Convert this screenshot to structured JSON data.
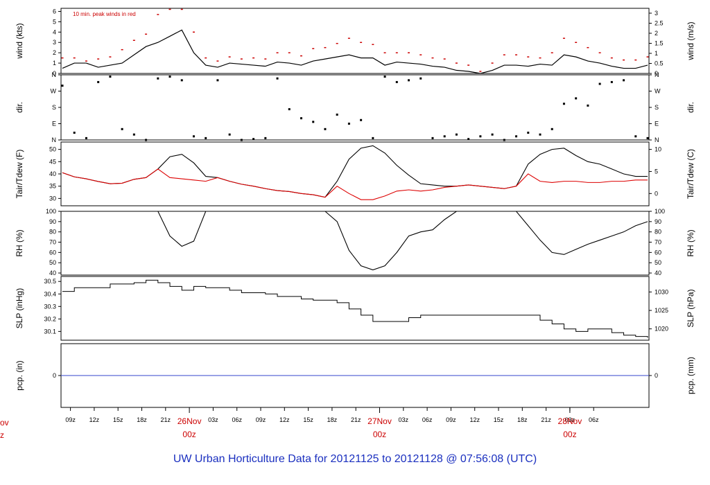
{
  "chart_data": {
    "type": "line",
    "title": "UW Urban Horticulture Data for 20121125  to  20121128 @ 07:56:08  (UTC)",
    "annotation": "10 min. peak winds in red",
    "x_ticks": [
      "09z",
      "12z",
      "15z",
      "18z",
      "21z",
      "03z",
      "06z",
      "09z",
      "12z",
      "15z",
      "18z",
      "21z",
      "03z",
      "06z",
      "09z",
      "12z",
      "15z",
      "18z",
      "21z",
      "03z",
      "06z"
    ],
    "day_markers": [
      {
        "date": "26Nov",
        "time": "00z"
      },
      {
        "date": "27Nov",
        "time": "00z"
      },
      {
        "date": "28Nov",
        "time": "00z"
      }
    ],
    "edge_labels": [
      "ov",
      "z"
    ],
    "colors": {
      "primary": "#000000",
      "peak": "#cc0000",
      "dewpoint": "#dd0000",
      "precip": "#3344cc",
      "title": "#1a2fbf"
    },
    "panels": [
      {
        "id": "wind",
        "ylabel_left": "wind (kts)",
        "ylabel_right": "wind (m/s)",
        "yticks_left": [
          "0",
          "1",
          "2",
          "3",
          "4",
          "5",
          "6"
        ],
        "yticks_right": [
          "0",
          "0.5",
          "1",
          "1.5",
          "2",
          "2.5",
          "3"
        ],
        "ylim": [
          0,
          6.3
        ],
        "series": [
          {
            "values": [
              0.5,
              1.0,
              1.0,
              0.6,
              0.8,
              1.0,
              1.8,
              2.6,
              3.0,
              3.6,
              4.2,
              2.0,
              0.8,
              0.6,
              1.0,
              0.9,
              0.8,
              0.7,
              1.1,
              1.0,
              0.8,
              1.2,
              1.4,
              1.6,
              1.8,
              1.5,
              1.5,
              0.8,
              1.1,
              1.0,
              0.9,
              0.7,
              0.6,
              0.3,
              0.2,
              0.0,
              0.3,
              0.8,
              0.8,
              0.7,
              0.9,
              0.8,
              1.8,
              1.6,
              1.2,
              1.0,
              0.7,
              0.5,
              0.5,
              0.8
            ]
          },
          {
            "values": [
              1.5,
              1.5,
              1.2,
              1.4,
              1.6,
              2.3,
              3.2,
              3.8,
              5.7,
              6.2,
              6.2,
              4.0,
              1.5,
              1.2,
              1.6,
              1.4,
              1.5,
              1.4,
              2.0,
              2.0,
              1.7,
              2.4,
              2.5,
              2.9,
              3.4,
              3.0,
              2.8,
              2.0,
              2.0,
              2.0,
              1.8,
              1.5,
              1.4,
              1.0,
              0.8,
              0.2,
              1.0,
              1.8,
              1.8,
              1.6,
              1.5,
              2.0,
              3.4,
              3.0,
              2.5,
              2.0,
              1.5,
              1.3,
              1.3,
              1.6
            ]
          }
        ]
      },
      {
        "id": "dir",
        "ylabel_left": "dir.",
        "ylabel_right": "dir.",
        "yticks_left": [
          "N",
          "E",
          "S",
          "W",
          "N"
        ],
        "yticks_right": [
          "N",
          "E",
          "S",
          "W",
          "N"
        ],
        "ylim": [
          0,
          360
        ],
        "series": [
          {
            "values": [
              300,
              40,
              10,
              320,
              350,
              60,
              30,
              0,
              340,
              350,
              330,
              20,
              10,
              330,
              30,
              0,
              5,
              10,
              340,
              170,
              120,
              100,
              60,
              140,
              90,
              110,
              10,
              350,
              320,
              330,
              340,
              10,
              20,
              30,
              5,
              20,
              30,
              0,
              20,
              40,
              30,
              60,
              200,
              230,
              190,
              310,
              320,
              330,
              20,
              10
            ]
          }
        ]
      },
      {
        "id": "temp",
        "ylabel_left": "Tair/Tdew (F)",
        "ylabel_right": "Tair/Tdew (C)",
        "yticks_left": [
          "30",
          "35",
          "40",
          "45",
          "50"
        ],
        "yticks_right": [
          "0",
          "5",
          "10"
        ],
        "ylim": [
          27,
          53
        ],
        "series": [
          {
            "name": "Tair",
            "values": [
              40.5,
              38.8,
              38.0,
              36.9,
              36.0,
              36.2,
              37.8,
              38.5,
              42.0,
              47.0,
              48.0,
              44.5,
              39.0,
              38.5,
              37.0,
              35.8,
              35.0,
              34.0,
              33.2,
              32.8,
              32.0,
              31.5,
              30.5,
              37.0,
              46.0,
              50.5,
              51.5,
              48.5,
              43.5,
              39.5,
              36.0,
              35.5,
              35.0,
              35.0,
              35.5,
              35.0,
              34.5,
              34.0,
              35.0,
              44.0,
              48.0,
              50.0,
              50.5,
              47.5,
              45.0,
              44.0,
              42.0,
              40.0,
              39.0,
              39.0
            ]
          },
          {
            "name": "Tdew",
            "values": [
              40.5,
              38.8,
              38.0,
              36.9,
              36.0,
              36.2,
              37.8,
              38.5,
              42.0,
              38.5,
              38.0,
              37.5,
              37.0,
              38.5,
              37.0,
              35.8,
              35.0,
              34.0,
              33.2,
              32.8,
              32.0,
              31.5,
              30.5,
              35.0,
              32.0,
              29.5,
              29.5,
              31.0,
              33.0,
              33.5,
              33.0,
              33.5,
              34.5,
              35.0,
              35.5,
              35.0,
              34.5,
              34.0,
              35.0,
              40.0,
              37.0,
              36.5,
              37.0,
              37.0,
              36.5,
              36.5,
              37.0,
              37.0,
              37.5,
              37.5
            ]
          }
        ]
      },
      {
        "id": "rh",
        "ylabel_left": "RH (%)",
        "ylabel_right": "RH (%)",
        "yticks_left": [
          "40",
          "50",
          "60",
          "70",
          "80",
          "90",
          "100"
        ],
        "yticks_right": [
          "40",
          "50",
          "60",
          "70",
          "80",
          "90",
          "100"
        ],
        "ylim": [
          38,
          100
        ],
        "series": [
          {
            "values": [
              100,
              100,
              100,
              100,
              100,
              100,
              100,
              100,
              100,
              76,
              66,
              71,
              100,
              100,
              100,
              100,
              100,
              100,
              100,
              100,
              100,
              100,
              100,
              90,
              62,
              47,
              43,
              47,
              60,
              76,
              80,
              82,
              92,
              100,
              100,
              100,
              100,
              100,
              100,
              86,
              72,
              60,
              58,
              63,
              68,
              72,
              76,
              80,
              86,
              90
            ]
          }
        ]
      },
      {
        "id": "slp",
        "ylabel_left": "SLP (inHg)",
        "ylabel_right": "SLP (hPa)",
        "yticks_left": [
          "30.1",
          "30.2",
          "30.3",
          "30.4",
          "30.5"
        ],
        "yticks_right": [
          "1020",
          "1025",
          "1030"
        ],
        "ylim": [
          30.03,
          30.54
        ],
        "series": [
          {
            "values": [
              30.42,
              30.45,
              30.45,
              30.45,
              30.48,
              30.48,
              30.49,
              30.51,
              30.49,
              30.46,
              30.43,
              30.46,
              30.45,
              30.45,
              30.43,
              30.41,
              30.41,
              30.4,
              30.38,
              30.38,
              30.36,
              30.35,
              30.35,
              30.33,
              30.28,
              30.23,
              30.18,
              30.18,
              30.18,
              30.21,
              30.23,
              30.23,
              30.23,
              30.23,
              30.23,
              30.23,
              30.23,
              30.23,
              30.23,
              30.23,
              30.19,
              30.16,
              30.12,
              30.1,
              30.12,
              30.12,
              30.09,
              30.07,
              30.06,
              30.05
            ]
          }
        ]
      },
      {
        "id": "pcp",
        "ylabel_left": "pcp. (in)",
        "ylabel_right": "pcp. (mm)",
        "yticks_left": [
          "0"
        ],
        "yticks_right": [
          "0"
        ],
        "ylim": [
          -1,
          1
        ],
        "series": [
          {
            "values": [
              0,
              0,
              0,
              0,
              0,
              0,
              0,
              0,
              0,
              0,
              0,
              0,
              0,
              0,
              0,
              0,
              0,
              0,
              0,
              0,
              0,
              0,
              0,
              0,
              0,
              0,
              0,
              0,
              0,
              0,
              0,
              0,
              0,
              0,
              0,
              0,
              0,
              0,
              0,
              0,
              0,
              0,
              0,
              0,
              0,
              0,
              0,
              0,
              0,
              0
            ]
          }
        ]
      }
    ]
  }
}
